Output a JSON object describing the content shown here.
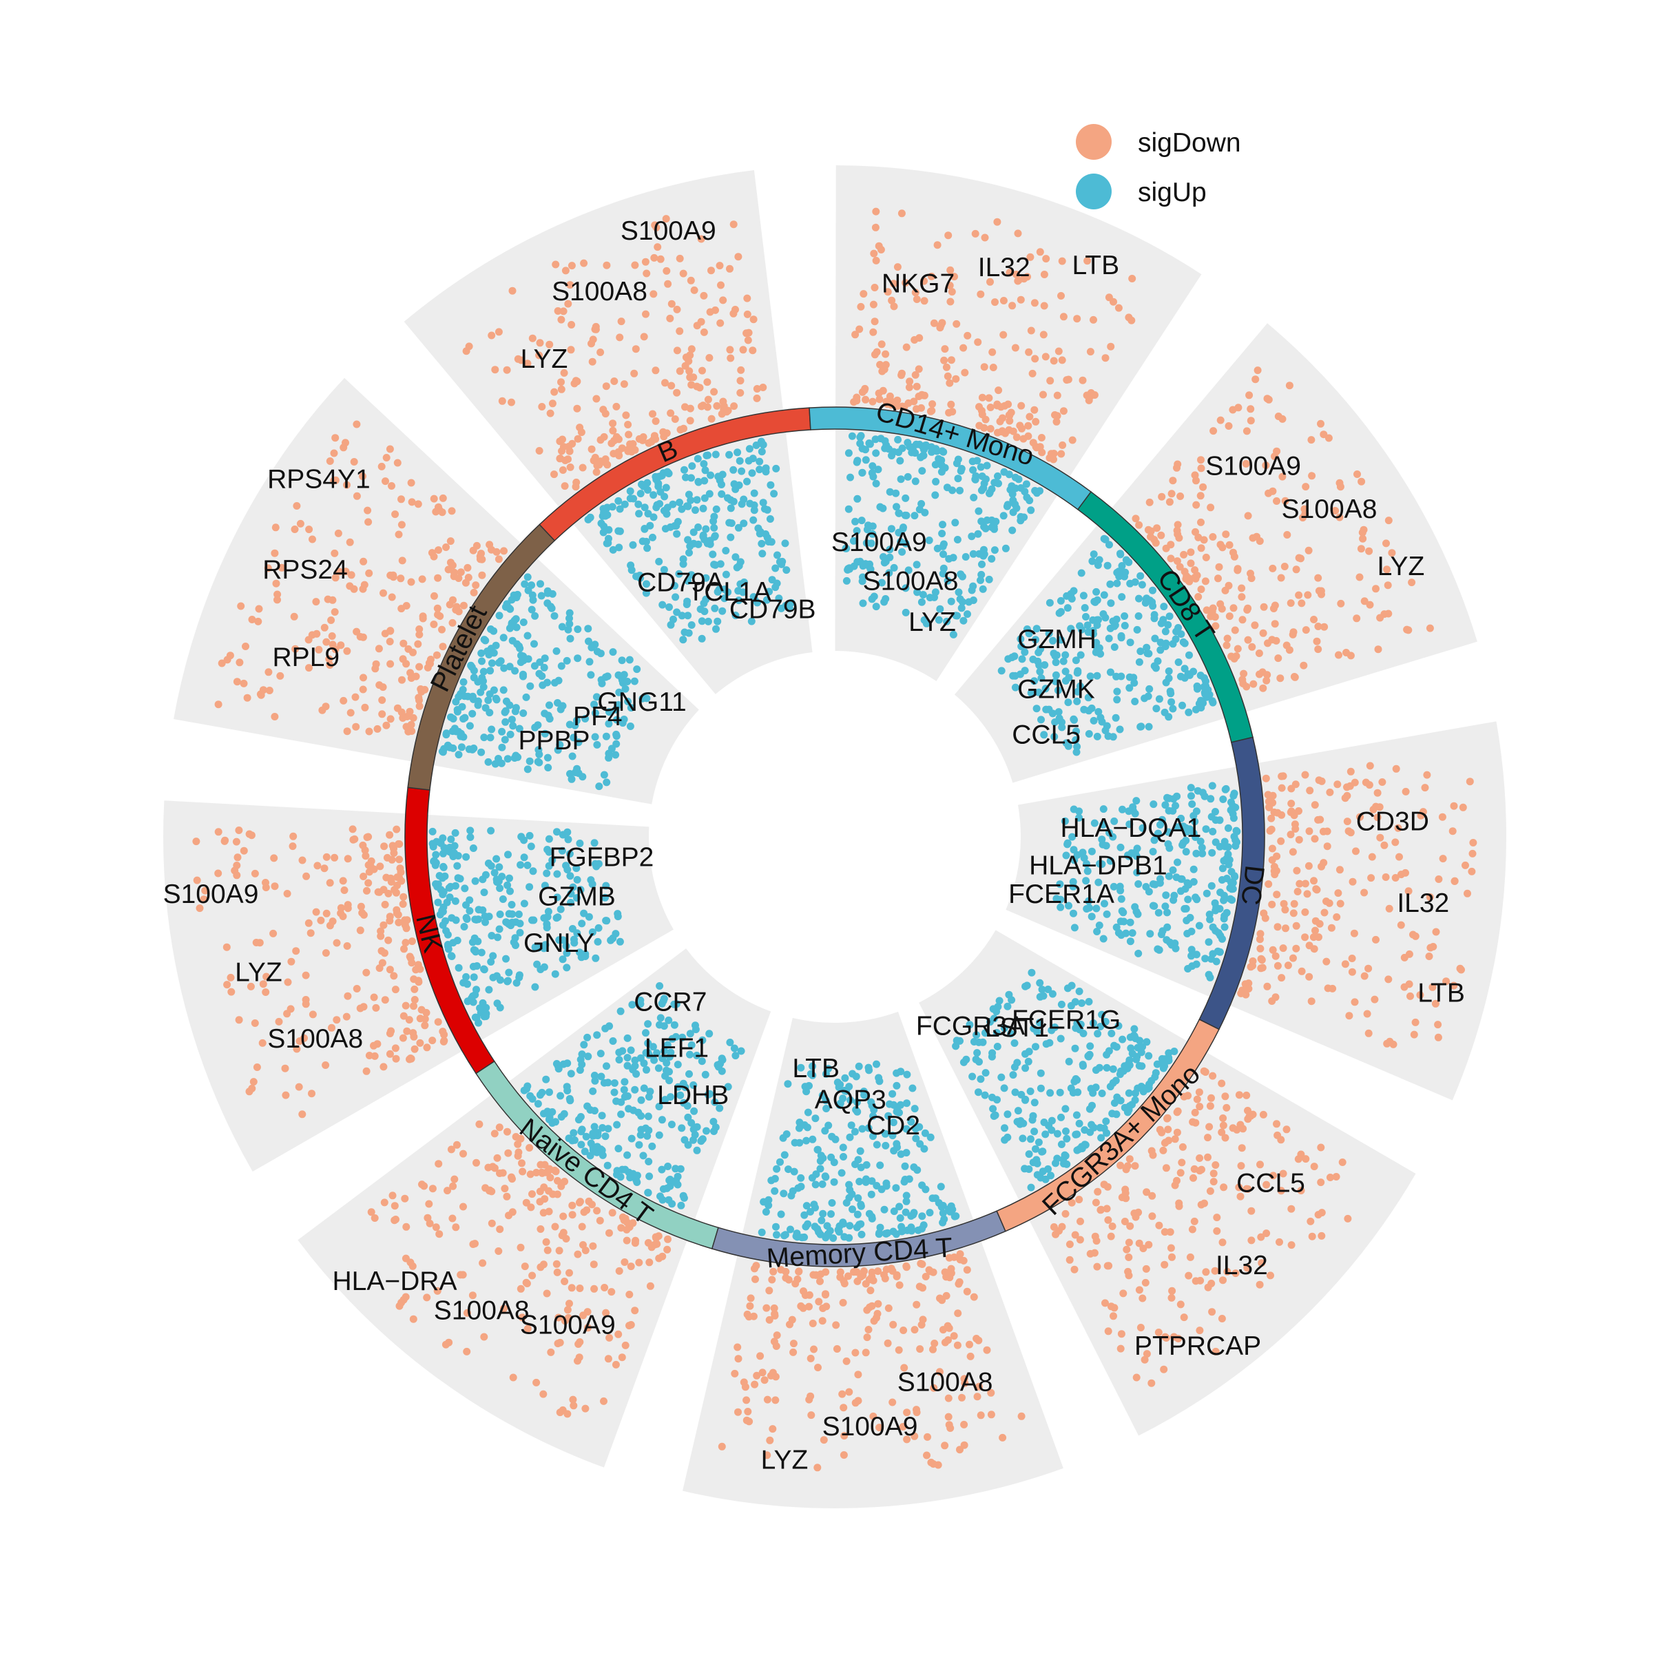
{
  "chart_data": {
    "type": "scatter",
    "title": "",
    "legend": {
      "placement": "top-right",
      "entries": [
        {
          "name": "sigDown",
          "color": "#F4A582"
        },
        {
          "name": "sigUp",
          "color": "#4DBBD5"
        }
      ]
    },
    "background_color": "#EDEDED",
    "clusters": [
      {
        "name": "FCGR3A+ Mono",
        "color": "#F4A582",
        "up_labels": [
          "FCER1G",
          "LST1",
          "FCGR3A"
        ],
        "down_labels": [
          "CCL5",
          "IL32",
          "PTPRCAP"
        ]
      },
      {
        "name": "Memory CD4 T",
        "color": "#8491B4",
        "up_labels": [
          "CD2",
          "AQP3",
          "LTB"
        ],
        "down_labels": [
          "S100A8",
          "S100A9",
          "LYZ"
        ]
      },
      {
        "name": "Naive CD4 T",
        "color": "#91D1C2",
        "up_labels": [
          "LDHB",
          "LEF1",
          "CCR7"
        ],
        "down_labels": [
          "S100A9",
          "S100A8",
          "HLA−DRA"
        ]
      },
      {
        "name": "NK",
        "color": "#DC0000",
        "up_labels": [
          "GNLY",
          "GZMB",
          "FGFBP2"
        ],
        "down_labels": [
          "S100A8",
          "LYZ",
          "S100A9"
        ]
      },
      {
        "name": "Platelet",
        "color": "#7E6148",
        "up_labels": [
          "PPBP",
          "PF4",
          "GNG11"
        ],
        "down_labels": [
          "RPL9",
          "RPS24",
          "RPS4Y1"
        ]
      },
      {
        "name": "B",
        "color": "#E64B35",
        "up_labels": [
          "CD79A",
          "TCL1A",
          "CD79B"
        ],
        "down_labels": [
          "LYZ",
          "S100A8",
          "S100A9"
        ]
      },
      {
        "name": "CD14+ Mono",
        "color": "#4DBBD5",
        "up_labels": [
          "S100A9",
          "S100A8",
          "LYZ"
        ],
        "down_labels": [
          "NKG7",
          "IL32",
          "LTB"
        ]
      },
      {
        "name": "CD8 T",
        "color": "#00A087",
        "up_labels": [
          "GZMH",
          "GZMK",
          "CCL5"
        ],
        "down_labels": [
          "S100A9",
          "S100A8",
          "LYZ"
        ]
      },
      {
        "name": "DC",
        "color": "#3C5488",
        "up_labels": [
          "HLA−DQA1",
          "HLA−DPB1",
          "FCER1A"
        ],
        "down_labels": [
          "CD3D",
          "IL32",
          "LTB"
        ]
      }
    ]
  }
}
